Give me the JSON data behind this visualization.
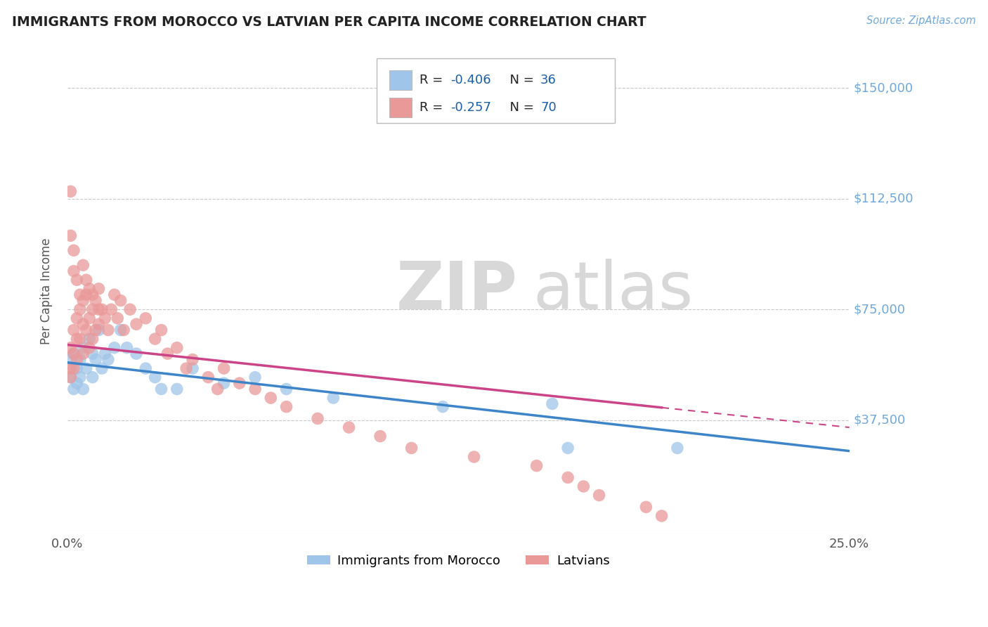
{
  "title": "IMMIGRANTS FROM MOROCCO VS LATVIAN PER CAPITA INCOME CORRELATION CHART",
  "source": "Source: ZipAtlas.com",
  "ylabel": "Per Capita Income",
  "xlim": [
    0.0,
    0.25
  ],
  "ylim": [
    0,
    162500
  ],
  "yticks": [
    0,
    37500,
    75000,
    112500,
    150000
  ],
  "ytick_labels": [
    "",
    "$37,500",
    "$75,000",
    "$112,500",
    "$150,000"
  ],
  "xtick_labels": [
    "0.0%",
    "25.0%"
  ],
  "background_color": "#ffffff",
  "grid_color": "#c8c8c8",
  "blue_color": "#9fc5e8",
  "pink_color": "#ea9999",
  "blue_line_color": "#3d85c8",
  "pink_line_color": "#cc4488",
  "watermark_color": "#e0e0e0",
  "title_color": "#222222",
  "ytick_color": "#6fa8dc",
  "source_color": "#6fa8dc",
  "legend_r_color": "#333333",
  "legend_val_color": "#1a5ea8",
  "legend_n_color": "#333333",
  "legend_nval_color": "#1a5ea8",
  "blue_scatter_x": [
    0.001,
    0.001,
    0.002,
    0.002,
    0.003,
    0.003,
    0.004,
    0.004,
    0.005,
    0.005,
    0.006,
    0.007,
    0.008,
    0.008,
    0.009,
    0.01,
    0.011,
    0.012,
    0.013,
    0.015,
    0.017,
    0.019,
    0.022,
    0.025,
    0.028,
    0.03,
    0.035,
    0.04,
    0.05,
    0.06,
    0.07,
    0.085,
    0.12,
    0.155,
    0.16,
    0.195
  ],
  "blue_scatter_y": [
    58000,
    52000,
    60000,
    48000,
    55000,
    50000,
    58000,
    52000,
    62000,
    48000,
    55000,
    65000,
    60000,
    52000,
    58000,
    68000,
    55000,
    60000,
    58000,
    62000,
    68000,
    62000,
    60000,
    55000,
    52000,
    48000,
    48000,
    55000,
    50000,
    52000,
    48000,
    45000,
    42000,
    43000,
    28000,
    28000
  ],
  "pink_scatter_x": [
    0.001,
    0.001,
    0.001,
    0.002,
    0.002,
    0.002,
    0.003,
    0.003,
    0.003,
    0.004,
    0.004,
    0.005,
    0.005,
    0.005,
    0.006,
    0.006,
    0.007,
    0.007,
    0.007,
    0.008,
    0.008,
    0.009,
    0.009,
    0.01,
    0.01,
    0.011,
    0.012,
    0.013,
    0.014,
    0.015,
    0.016,
    0.017,
    0.018,
    0.02,
    0.022,
    0.025,
    0.028,
    0.03,
    0.032,
    0.035,
    0.038,
    0.04,
    0.045,
    0.048,
    0.05,
    0.055,
    0.06,
    0.065,
    0.07,
    0.08,
    0.09,
    0.1,
    0.11,
    0.13,
    0.15,
    0.16,
    0.165,
    0.17,
    0.185,
    0.19,
    0.001,
    0.001,
    0.002,
    0.002,
    0.003,
    0.004,
    0.005,
    0.006,
    0.008,
    0.01
  ],
  "pink_scatter_y": [
    62000,
    55000,
    52000,
    68000,
    60000,
    55000,
    72000,
    65000,
    58000,
    75000,
    65000,
    78000,
    70000,
    60000,
    80000,
    68000,
    82000,
    72000,
    62000,
    75000,
    65000,
    78000,
    68000,
    82000,
    70000,
    75000,
    72000,
    68000,
    75000,
    80000,
    72000,
    78000,
    68000,
    75000,
    70000,
    72000,
    65000,
    68000,
    60000,
    62000,
    55000,
    58000,
    52000,
    48000,
    55000,
    50000,
    48000,
    45000,
    42000,
    38000,
    35000,
    32000,
    28000,
    25000,
    22000,
    18000,
    15000,
    12000,
    8000,
    5000,
    115000,
    100000,
    95000,
    88000,
    85000,
    80000,
    90000,
    85000,
    80000,
    75000
  ]
}
